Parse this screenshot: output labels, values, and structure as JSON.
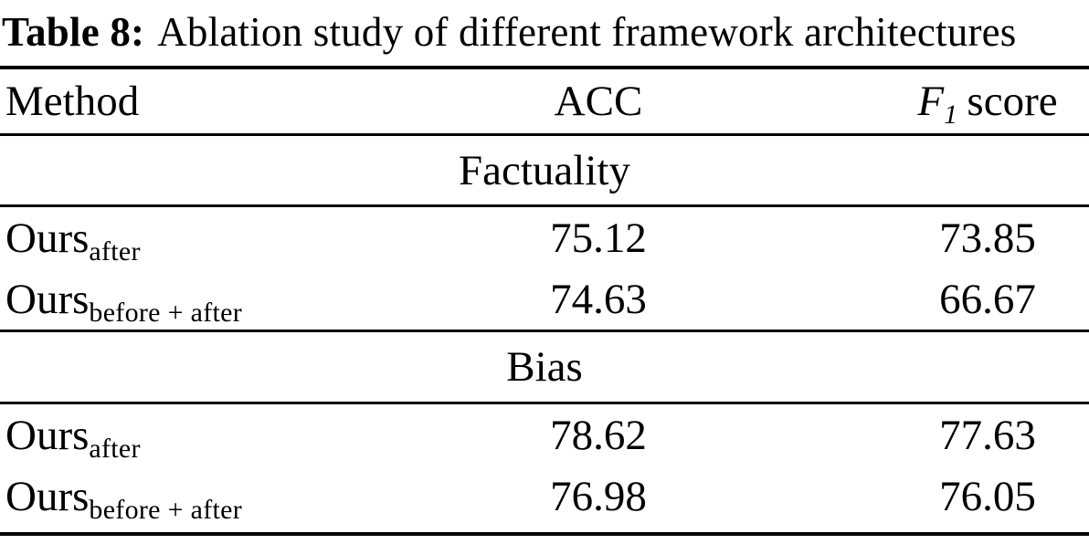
{
  "title": {
    "label": "Table 8:",
    "text": "Ablation study of different framework architectures"
  },
  "table": {
    "header": {
      "method": "Method",
      "acc": "ACC",
      "f1_base": "F",
      "f1_sub": "1",
      "f1_rest": "score"
    },
    "sections": [
      {
        "name": "Factuality",
        "rows": [
          {
            "method_base": "Ours",
            "method_sub": "after",
            "acc": "75.12",
            "f1": "73.85"
          },
          {
            "method_base": "Ours",
            "method_sub": "before + after",
            "acc": "74.63",
            "f1": "66.67"
          }
        ]
      },
      {
        "name": "Bias",
        "rows": [
          {
            "method_base": "Ours",
            "method_sub": "after",
            "acc": "78.62",
            "f1": "77.63"
          },
          {
            "method_base": "Ours",
            "method_sub": "before + after",
            "acc": "76.98",
            "f1": "76.05"
          }
        ]
      }
    ]
  },
  "chart_data": {
    "type": "table",
    "title": "Table 8: Ablation study of different framework architectures",
    "columns": [
      "Method",
      "ACC",
      "F1 score"
    ],
    "sections": [
      {
        "name": "Factuality",
        "rows": [
          [
            "Ours_after",
            75.12,
            73.85
          ],
          [
            "Ours_before + after",
            74.63,
            66.67
          ]
        ]
      },
      {
        "name": "Bias",
        "rows": [
          [
            "Ours_after",
            78.62,
            77.63
          ],
          [
            "Ours_before + after",
            76.98,
            76.05
          ]
        ]
      }
    ]
  },
  "colors": {
    "text": "#000000",
    "background": "#ffffff",
    "rule": "#000000"
  }
}
